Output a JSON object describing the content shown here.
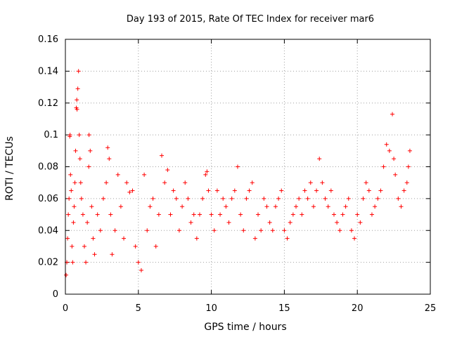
{
  "chart_data": {
    "type": "scatter",
    "title": "Day 193 of 2015, Rate Of TEC Index for receiver mar6",
    "xlabel": "GPS time / hours",
    "ylabel": "ROTI / TECUs",
    "xlim": [
      0,
      25
    ],
    "ylim": [
      0,
      0.16
    ],
    "x_ticks": [
      0,
      5,
      10,
      15,
      20,
      25
    ],
    "y_ticks": [
      0,
      0.02,
      0.04,
      0.06,
      0.08,
      0.1,
      0.12,
      0.14,
      0.16
    ],
    "x_tick_labels": [
      "0",
      "5",
      "10",
      "15",
      "20",
      "25"
    ],
    "y_tick_labels": [
      "0",
      "0.02",
      "0.04",
      "0.06",
      "0.08",
      "0.1",
      "0.12",
      "0.14",
      "0.16"
    ],
    "grid": true,
    "marker": "plus",
    "series": [
      {
        "name": "ROTI",
        "color": "#ff0000",
        "points": [
          [
            0.05,
            0.012
          ],
          [
            0.1,
            0.02
          ],
          [
            0.15,
            0.035
          ],
          [
            0.2,
            0.05
          ],
          [
            0.25,
            0.06
          ],
          [
            0.3,
            0.099
          ],
          [
            0.32,
            0.1
          ],
          [
            0.35,
            0.075
          ],
          [
            0.4,
            0.065
          ],
          [
            0.45,
            0.03
          ],
          [
            0.5,
            0.02
          ],
          [
            0.55,
            0.045
          ],
          [
            0.6,
            0.055
          ],
          [
            0.65,
            0.07
          ],
          [
            0.7,
            0.09
          ],
          [
            0.75,
            0.117
          ],
          [
            0.78,
            0.122
          ],
          [
            0.8,
            0.116
          ],
          [
            0.85,
            0.129
          ],
          [
            0.9,
            0.14
          ],
          [
            0.95,
            0.1
          ],
          [
            1.0,
            0.085
          ],
          [
            1.05,
            0.07
          ],
          [
            1.1,
            0.06
          ],
          [
            1.2,
            0.05
          ],
          [
            1.3,
            0.03
          ],
          [
            1.4,
            0.02
          ],
          [
            1.5,
            0.045
          ],
          [
            1.6,
            0.08
          ],
          [
            1.62,
            0.1
          ],
          [
            1.7,
            0.09
          ],
          [
            1.8,
            0.055
          ],
          [
            1.9,
            0.035
          ],
          [
            2.0,
            0.025
          ],
          [
            2.2,
            0.05
          ],
          [
            2.4,
            0.04
          ],
          [
            2.6,
            0.06
          ],
          [
            2.8,
            0.07
          ],
          [
            2.9,
            0.092
          ],
          [
            3.0,
            0.085
          ],
          [
            3.1,
            0.05
          ],
          [
            3.2,
            0.025
          ],
          [
            3.4,
            0.04
          ],
          [
            3.6,
            0.075
          ],
          [
            3.8,
            0.055
          ],
          [
            4.0,
            0.035
          ],
          [
            4.2,
            0.07
          ],
          [
            4.4,
            0.064
          ],
          [
            4.6,
            0.065
          ],
          [
            4.8,
            0.03
          ],
          [
            5.0,
            0.02
          ],
          [
            5.2,
            0.015
          ],
          [
            5.4,
            0.075
          ],
          [
            5.6,
            0.04
          ],
          [
            5.8,
            0.055
          ],
          [
            6.0,
            0.06
          ],
          [
            6.2,
            0.03
          ],
          [
            6.4,
            0.05
          ],
          [
            6.6,
            0.087
          ],
          [
            6.8,
            0.07
          ],
          [
            7.0,
            0.078
          ],
          [
            7.2,
            0.05
          ],
          [
            7.4,
            0.065
          ],
          [
            7.6,
            0.06
          ],
          [
            7.8,
            0.04
          ],
          [
            8.0,
            0.055
          ],
          [
            8.2,
            0.07
          ],
          [
            8.4,
            0.06
          ],
          [
            8.6,
            0.045
          ],
          [
            8.8,
            0.05
          ],
          [
            9.0,
            0.035
          ],
          [
            9.2,
            0.05
          ],
          [
            9.4,
            0.06
          ],
          [
            9.6,
            0.075
          ],
          [
            9.7,
            0.077
          ],
          [
            9.8,
            0.065
          ],
          [
            10.0,
            0.05
          ],
          [
            10.2,
            0.04
          ],
          [
            10.4,
            0.065
          ],
          [
            10.6,
            0.05
          ],
          [
            10.8,
            0.06
          ],
          [
            11.0,
            0.055
          ],
          [
            11.2,
            0.045
          ],
          [
            11.4,
            0.06
          ],
          [
            11.6,
            0.065
          ],
          [
            11.8,
            0.08
          ],
          [
            12.0,
            0.05
          ],
          [
            12.2,
            0.04
          ],
          [
            12.4,
            0.06
          ],
          [
            12.6,
            0.065
          ],
          [
            12.8,
            0.07
          ],
          [
            13.0,
            0.035
          ],
          [
            13.2,
            0.05
          ],
          [
            13.4,
            0.04
          ],
          [
            13.6,
            0.06
          ],
          [
            13.8,
            0.055
          ],
          [
            14.0,
            0.045
          ],
          [
            14.2,
            0.04
          ],
          [
            14.4,
            0.055
          ],
          [
            14.6,
            0.06
          ],
          [
            14.8,
            0.065
          ],
          [
            15.0,
            0.04
          ],
          [
            15.2,
            0.035
          ],
          [
            15.4,
            0.045
          ],
          [
            15.6,
            0.05
          ],
          [
            15.8,
            0.055
          ],
          [
            16.0,
            0.06
          ],
          [
            16.2,
            0.05
          ],
          [
            16.4,
            0.065
          ],
          [
            16.6,
            0.06
          ],
          [
            16.8,
            0.07
          ],
          [
            17.0,
            0.055
          ],
          [
            17.2,
            0.065
          ],
          [
            17.4,
            0.085
          ],
          [
            17.6,
            0.07
          ],
          [
            17.8,
            0.06
          ],
          [
            18.0,
            0.055
          ],
          [
            18.2,
            0.065
          ],
          [
            18.4,
            0.05
          ],
          [
            18.6,
            0.045
          ],
          [
            18.8,
            0.04
          ],
          [
            19.0,
            0.05
          ],
          [
            19.2,
            0.055
          ],
          [
            19.4,
            0.06
          ],
          [
            19.6,
            0.04
          ],
          [
            19.8,
            0.035
          ],
          [
            20.0,
            0.05
          ],
          [
            20.2,
            0.045
          ],
          [
            20.4,
            0.06
          ],
          [
            20.6,
            0.07
          ],
          [
            20.8,
            0.065
          ],
          [
            21.0,
            0.05
          ],
          [
            21.2,
            0.055
          ],
          [
            21.4,
            0.06
          ],
          [
            21.6,
            0.065
          ],
          [
            21.8,
            0.08
          ],
          [
            22.0,
            0.094
          ],
          [
            22.2,
            0.09
          ],
          [
            22.4,
            0.113
          ],
          [
            22.5,
            0.085
          ],
          [
            22.6,
            0.075
          ],
          [
            22.8,
            0.06
          ],
          [
            23.0,
            0.055
          ],
          [
            23.2,
            0.065
          ],
          [
            23.4,
            0.07
          ],
          [
            23.5,
            0.08
          ],
          [
            23.6,
            0.09
          ]
        ]
      }
    ]
  }
}
